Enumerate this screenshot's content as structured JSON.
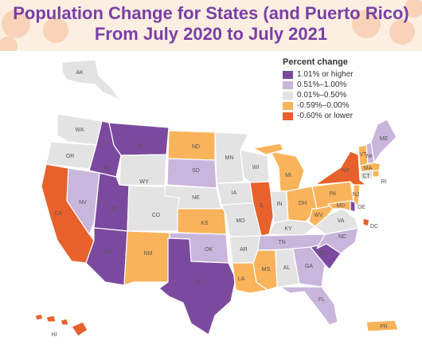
{
  "title_line1": "Population Change for States (and Puerto Rico)",
  "title_line2": "From July 2020 to July 2021",
  "legend": {
    "title": "Percent change",
    "items": [
      {
        "label": "1.01% or higher",
        "color": "#7b4a9e"
      },
      {
        "label": "0.51%–1.00%",
        "color": "#c9b6dc"
      },
      {
        "label": "0.01%–0.50%",
        "color": "#e3e3e3"
      },
      {
        "label": "-0.59%–0.00%",
        "color": "#f9b35a"
      },
      {
        "label": "-0.60% or lower",
        "color": "#e8612c"
      }
    ]
  },
  "states": {
    "AK": {
      "label": "AK",
      "category": 3
    },
    "WA": {
      "label": "WA",
      "category": 3
    },
    "OR": {
      "label": "OR",
      "category": 3
    },
    "CA": {
      "label": "CA",
      "category": 5
    },
    "NV": {
      "label": "NV",
      "category": 2
    },
    "ID": {
      "label": "ID",
      "category": 1
    },
    "MT": {
      "label": "MT",
      "category": 1
    },
    "WY": {
      "label": "WY",
      "category": 3
    },
    "UT": {
      "label": "UT",
      "category": 1
    },
    "AZ": {
      "label": "AZ",
      "category": 1
    },
    "CO": {
      "label": "CO",
      "category": 3
    },
    "NM": {
      "label": "NM",
      "category": 4
    },
    "ND": {
      "label": "ND",
      "category": 4
    },
    "SD": {
      "label": "SD",
      "category": 2
    },
    "NE": {
      "label": "NE",
      "category": 3
    },
    "KS": {
      "label": "KS",
      "category": 4
    },
    "OK": {
      "label": "OK",
      "category": 2
    },
    "TX": {
      "label": "TX",
      "category": 1
    },
    "MN": {
      "label": "MN",
      "category": 3
    },
    "IA": {
      "label": "IA",
      "category": 3
    },
    "MO": {
      "label": "MO",
      "category": 3
    },
    "AR": {
      "label": "AR",
      "category": 3
    },
    "LA": {
      "label": "LA",
      "category": 4
    },
    "WI": {
      "label": "WI",
      "category": 3
    },
    "IL": {
      "label": "IL",
      "category": 5
    },
    "MI": {
      "label": "MI",
      "category": 4
    },
    "IN": {
      "label": "IN",
      "category": 3
    },
    "OH": {
      "label": "OH",
      "category": 4
    },
    "KY": {
      "label": "KY",
      "category": 3
    },
    "TN": {
      "label": "TN",
      "category": 2
    },
    "MS": {
      "label": "MS",
      "category": 4
    },
    "AL": {
      "label": "AL",
      "category": 3
    },
    "GA": {
      "label": "GA",
      "category": 2
    },
    "FL": {
      "label": "FL",
      "category": 2
    },
    "SC": {
      "label": "SC",
      "category": 1
    },
    "NC": {
      "label": "NC",
      "category": 2
    },
    "VA": {
      "label": "VA",
      "category": 3
    },
    "WV": {
      "label": "WV",
      "category": 4
    },
    "PA": {
      "label": "PA",
      "category": 4
    },
    "NY": {
      "label": "NY",
      "category": 5
    },
    "VT": {
      "label": "VT",
      "category": 4
    },
    "NH": {
      "label": "NH",
      "category": 2
    },
    "ME": {
      "label": "ME",
      "category": 2
    },
    "MA": {
      "label": "MA",
      "category": 4
    },
    "RI": {
      "label": "RI",
      "category": 4
    },
    "CT": {
      "label": "CT",
      "category": 3
    },
    "NJ": {
      "label": "NJ",
      "category": 4
    },
    "DE": {
      "label": "DE",
      "category": 1
    },
    "MD": {
      "label": "MD",
      "category": 4
    },
    "DC": {
      "label": "DC",
      "category": 5
    },
    "HI": {
      "label": "HI",
      "category": 5
    },
    "PR": {
      "label": "PR",
      "category": 4
    }
  }
}
